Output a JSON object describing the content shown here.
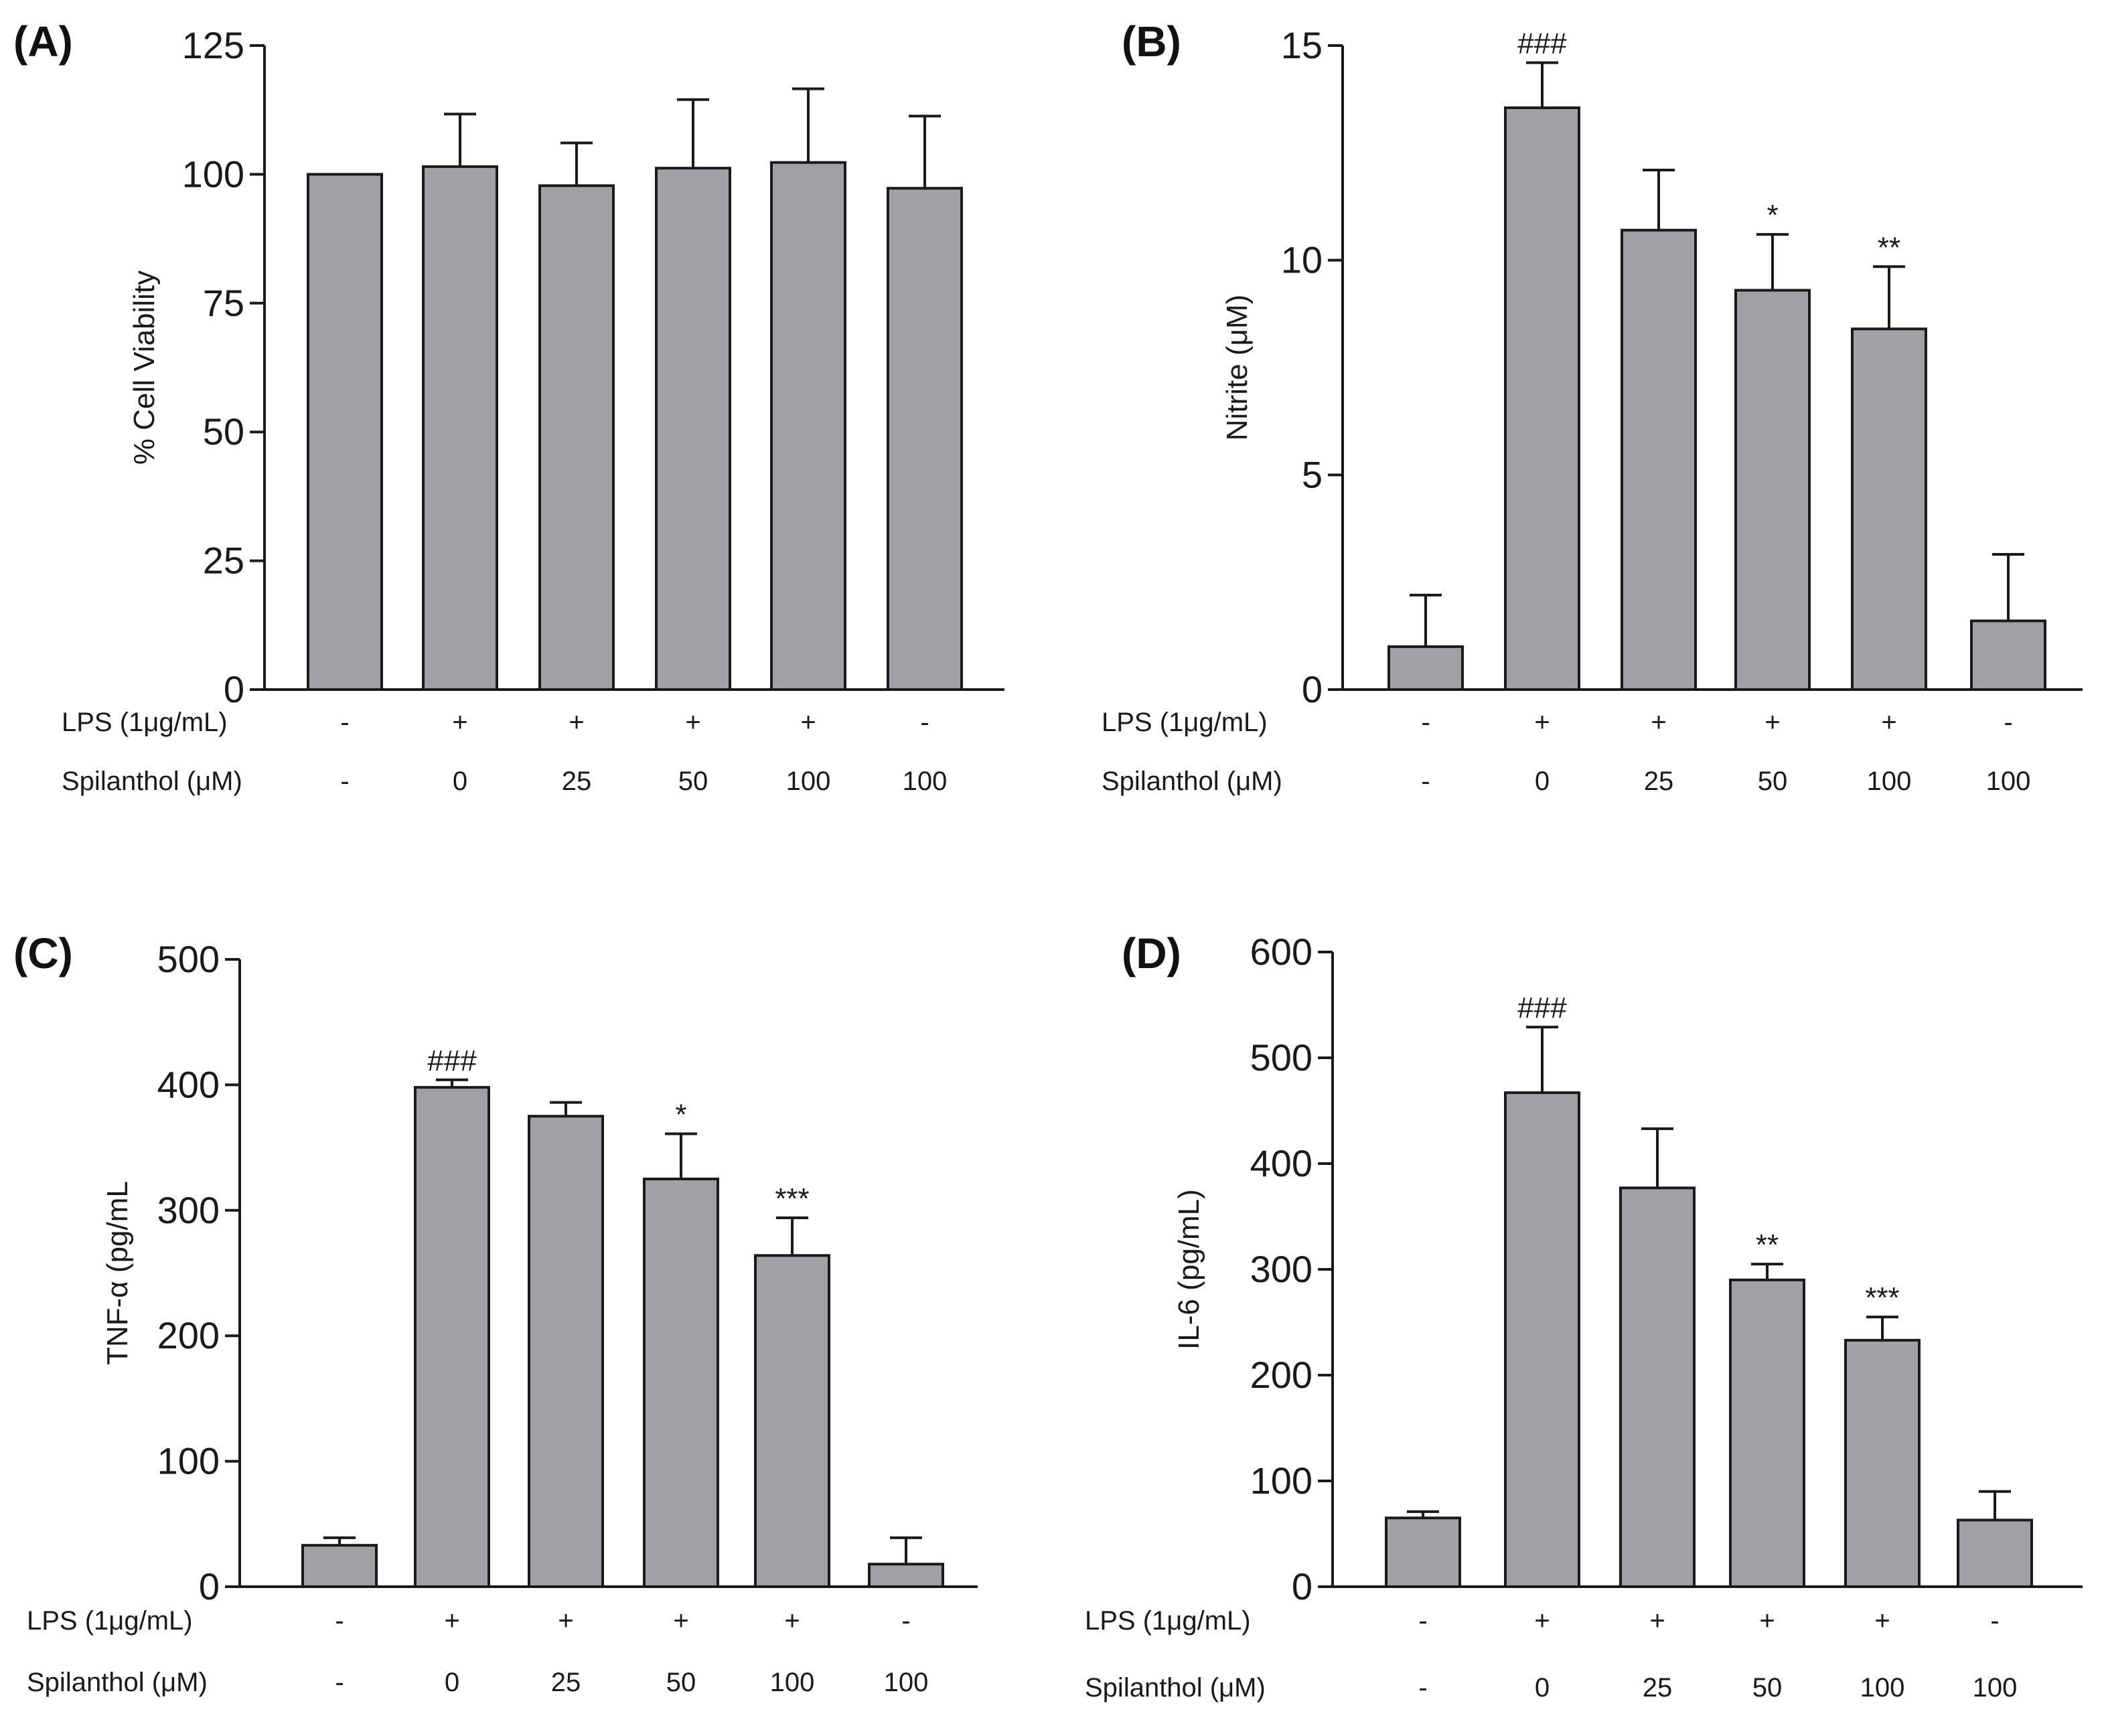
{
  "figure": {
    "bar_color": "#a0a0a6",
    "edge_color": "#1a1a1a"
  },
  "row_labels": {
    "lps": "LPS (1μg/mL)",
    "spilanthol": "Spilanthol (μM)"
  },
  "chart_data": [
    {
      "type": "bar",
      "panel": "(A)",
      "title": "",
      "xlabel": "",
      "ylabel": "% Cell Viability",
      "ylim": [
        0,
        125
      ],
      "yticks": [
        0,
        25,
        50,
        75,
        100,
        125
      ],
      "lps": [
        "-",
        "+",
        "+",
        "+",
        "+",
        "-"
      ],
      "spilanthol": [
        "-",
        "0",
        "25",
        "50",
        "100",
        "100"
      ],
      "values": [
        100,
        101.5,
        97.8,
        101.2,
        102.3,
        97.3
      ],
      "errors": [
        0,
        10.2,
        8.3,
        13.3,
        14.3,
        14.0
      ],
      "significance": [
        "",
        "",
        "",
        "",
        "",
        ""
      ]
    },
    {
      "type": "bar",
      "panel": "(B)",
      "title": "",
      "xlabel": "",
      "ylabel": "Nitrite (μM)",
      "ylim": [
        0,
        15
      ],
      "yticks": [
        0,
        5,
        10,
        15
      ],
      "lps": [
        "-",
        "+",
        "+",
        "+",
        "+",
        "-"
      ],
      "spilanthol": [
        "-",
        "0",
        "25",
        "50",
        "100",
        "100"
      ],
      "values": [
        1.0,
        13.55,
        10.7,
        9.3,
        8.4,
        1.6
      ],
      "errors": [
        1.2,
        1.05,
        1.4,
        1.3,
        1.45,
        1.55
      ],
      "significance": [
        "",
        "###",
        "",
        "*",
        "**",
        ""
      ]
    },
    {
      "type": "bar",
      "panel": "(C)",
      "title": "",
      "xlabel": "",
      "ylabel": "TNF-α (pg/mL",
      "ylim": [
        0,
        500
      ],
      "yticks": [
        0,
        100,
        200,
        300,
        400,
        500
      ],
      "lps": [
        "-",
        "+",
        "+",
        "+",
        "+",
        "-"
      ],
      "spilanthol": [
        "-",
        "0",
        "25",
        "50",
        "100",
        "100"
      ],
      "values": [
        33,
        398,
        375,
        325,
        264,
        18
      ],
      "errors": [
        6,
        6,
        11,
        36,
        30,
        21
      ],
      "significance": [
        "",
        "###",
        "",
        "*",
        "***",
        ""
      ]
    },
    {
      "type": "bar",
      "panel": "(D)",
      "title": "",
      "xlabel": "",
      "ylabel": "IL-6 (pg/mL)",
      "ylim": [
        0,
        600
      ],
      "yticks": [
        0,
        100,
        200,
        300,
        400,
        500,
        600
      ],
      "lps": [
        "-",
        "+",
        "+",
        "+",
        "+",
        "-"
      ],
      "spilanthol": [
        "-",
        "0",
        "25",
        "50",
        "100",
        "100"
      ],
      "values": [
        65,
        467,
        377,
        290,
        233,
        63
      ],
      "errors": [
        6,
        62,
        56,
        15,
        22,
        27
      ],
      "significance": [
        "",
        "###",
        "",
        "**",
        "***",
        ""
      ]
    }
  ]
}
